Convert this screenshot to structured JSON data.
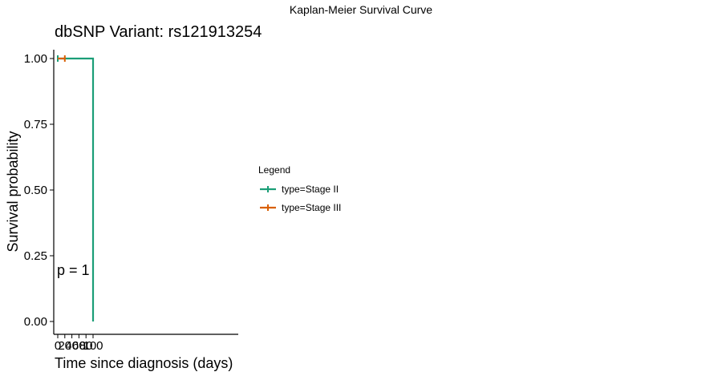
{
  "page": {
    "title": "Kaplan-Meier Survival Curve"
  },
  "chart_data": {
    "type": "line",
    "title": "dbSNP Variant: rs121913254",
    "xlabel": "Time since diagnosis (days)",
    "ylabel": "Survival probability",
    "xlim": [
      0,
      500
    ],
    "ylim": [
      0,
      1
    ],
    "x_ticks": [
      0,
      20,
      40,
      60,
      80,
      100
    ],
    "y_ticks": [
      0,
      0.25,
      0.5,
      0.75,
      1
    ],
    "y_tick_labels": [
      "0.00",
      "0.25",
      "0.50",
      "0.75",
      "1.00"
    ],
    "pvalue": "p = 1",
    "grid": false,
    "legend": {
      "title": "Legend",
      "position": "right"
    },
    "series": [
      {
        "name": "type=Stage II",
        "color": "#1b9e77",
        "x": [
          0,
          100,
          100
        ],
        "y": [
          1,
          1,
          0
        ],
        "censored": [
          {
            "x": 0,
            "y": 1
          }
        ]
      },
      {
        "name": "type=Stage III",
        "color": "#d95f02",
        "x": [
          0,
          20
        ],
        "y": [
          1,
          1
        ],
        "censored": [
          {
            "x": 20,
            "y": 1
          }
        ]
      }
    ]
  }
}
